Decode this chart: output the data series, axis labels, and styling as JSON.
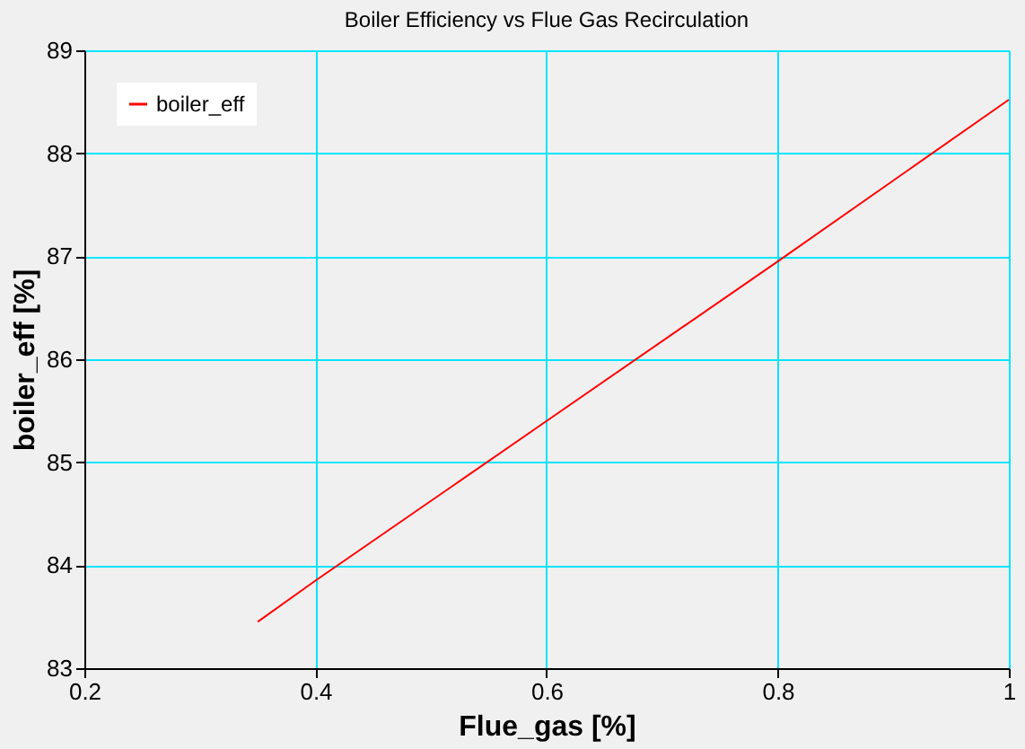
{
  "chart_data": {
    "type": "line",
    "title": "Boiler Efficiency vs Flue Gas Recirculation",
    "xlabel": "Flue_gas [%]",
    "ylabel": "boiler_eff [%]",
    "x": [
      0.35,
      0.4,
      0.6,
      0.8,
      1.0
    ],
    "series": [
      {
        "name": "boiler_eff",
        "color": "#ff0000",
        "values": [
          83.45,
          83.85,
          85.4,
          86.95,
          88.52
        ]
      }
    ],
    "xlim": [
      0.2,
      1.0
    ],
    "xticks": [
      0.2,
      0.4,
      0.6,
      0.8,
      1
    ],
    "ylim": [
      83,
      89
    ],
    "yticks": [
      83,
      84,
      85,
      86,
      87,
      88,
      89
    ],
    "grid": true,
    "legend": "top left",
    "marker": "none",
    "line_style": "solid"
  }
}
